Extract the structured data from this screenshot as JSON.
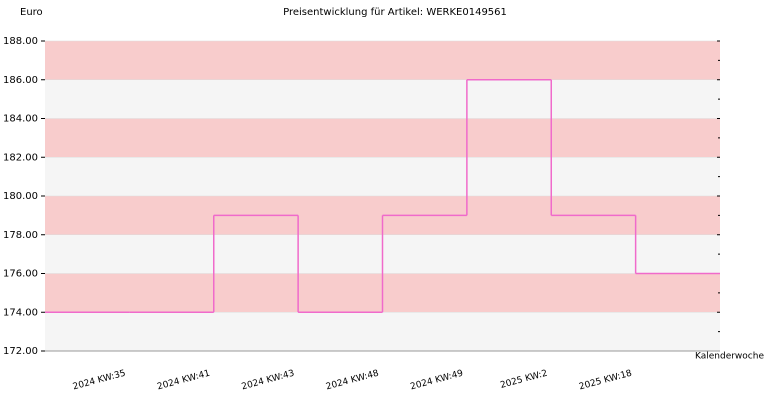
{
  "chart_data": {
    "type": "step",
    "title": "Preisentwicklung für Artikel: WERKE0149561",
    "y_label": "Euro",
    "x_label": "Kalenderwoche",
    "categories": [
      "2024 KW:35",
      "2024 KW:41",
      "2024 KW:43",
      "2024 KW:48",
      "2024 KW:49",
      "2025 KW:2",
      "2025 KW:18",
      null
    ],
    "values": [
      174,
      174,
      179,
      174,
      179,
      186,
      179,
      176
    ],
    "color": "#f06acb",
    "band_colors": [
      "#f5f5f5",
      "#f8cccc"
    ],
    "ylim": [
      172,
      188
    ],
    "yticks": [
      {
        "value": 172,
        "label": "172.00"
      },
      {
        "value": 174,
        "label": "174.00"
      },
      {
        "value": 176,
        "label": "176.00"
      },
      {
        "value": 178,
        "label": "178.00"
      },
      {
        "value": 180,
        "label": "180.00"
      },
      {
        "value": 182,
        "label": "182.00"
      },
      {
        "value": 184,
        "label": "184.00"
      },
      {
        "value": 186,
        "label": "186.00"
      },
      {
        "value": 188,
        "label": "188.00"
      }
    ]
  }
}
